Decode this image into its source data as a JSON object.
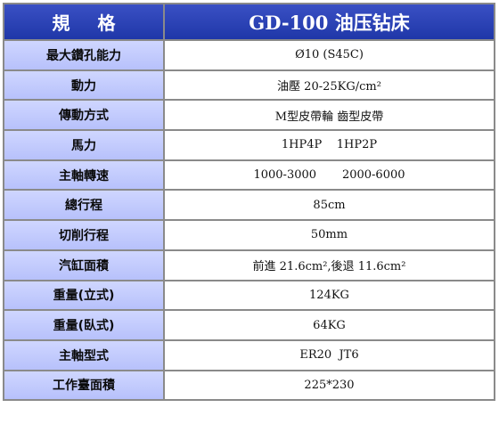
{
  "header": {
    "spec_label": "規 格",
    "model_label": "GD-100 油压钻床"
  },
  "rows": [
    {
      "label": "最大鑽孔能力",
      "value": "Ø10 (S45C)"
    },
    {
      "label": "動力",
      "value": "油壓 20-25KG/cm²"
    },
    {
      "label": "傳動方式",
      "value": "M型皮帶輪 齒型皮帶"
    },
    {
      "label": "馬力",
      "value": "1HP4P    1HP2P"
    },
    {
      "label": "主軸轉速",
      "value": "1000-3000       2000-6000"
    },
    {
      "label": "總行程",
      "value": "85cm"
    },
    {
      "label": "切削行程",
      "value": "50mm"
    },
    {
      "label": "汽缸面積",
      "value": "前進 21.6cm²,後退 11.6cm²"
    },
    {
      "label": "重量(立式)",
      "value": "124KG"
    },
    {
      "label": "重量(臥式)",
      "value": "64KG"
    },
    {
      "label": "主軸型式",
      "value": "ER20  JT6"
    },
    {
      "label": "工作臺面積",
      "value": "225*230"
    }
  ]
}
